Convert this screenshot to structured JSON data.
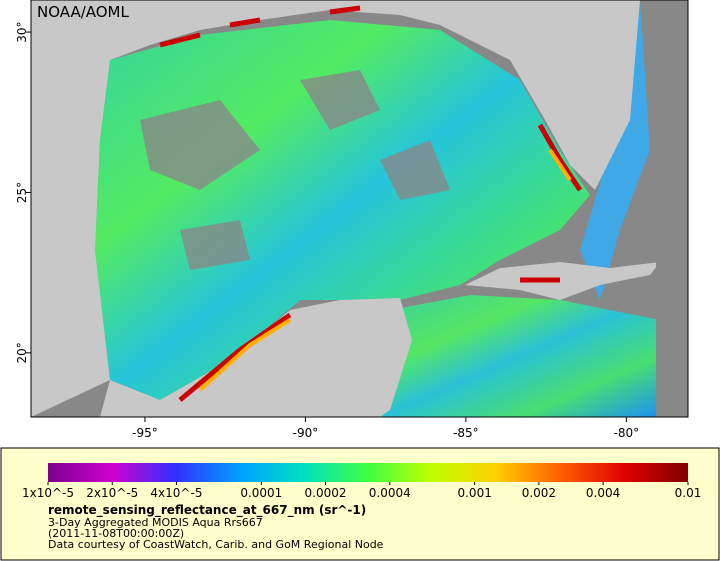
{
  "map": {
    "watermark": "NOAA/AOML",
    "lon_range": [
      -98.55,
      -78.08
    ],
    "lat_range": [
      18.0,
      31.0
    ],
    "lon_ticks": [
      {
        "value": -95,
        "label": "-95°"
      },
      {
        "value": -90,
        "label": "-90°"
      },
      {
        "value": -85,
        "label": "-85°"
      },
      {
        "value": -80,
        "label": "-80°"
      }
    ],
    "lat_ticks": [
      {
        "value": 30,
        "label": "30°"
      },
      {
        "value": 25,
        "label": "25°"
      },
      {
        "value": 20,
        "label": "20°"
      }
    ]
  },
  "legend": {
    "scale": "log",
    "range": [
      1e-05,
      0.01
    ],
    "colors": [
      "#7a0090",
      "#d000d0",
      "#3030ff",
      "#00a0ff",
      "#00e0c0",
      "#40ff40",
      "#c0ff00",
      "#ffd000",
      "#ff6000",
      "#e00000",
      "#800000"
    ],
    "ticks": [
      {
        "value": 1e-05,
        "label": "1x10^-5"
      },
      {
        "value": 2e-05,
        "label": "2x10^-5"
      },
      {
        "value": 4e-05,
        "label": "4x10^-5"
      },
      {
        "value": 0.0001,
        "label": "0.0001"
      },
      {
        "value": 0.0002,
        "label": "0.0002"
      },
      {
        "value": 0.0004,
        "label": "0.0004"
      },
      {
        "value": 0.001,
        "label": "0.001"
      },
      {
        "value": 0.002,
        "label": "0.002"
      },
      {
        "value": 0.004,
        "label": "0.004"
      },
      {
        "value": 0.01,
        "label": "0.01"
      }
    ],
    "title": "remote_sensing_reflectance_at_667_nm (sr^-1)",
    "lines": [
      "3-Day Aggregated MODIS Aqua Rrs667",
      "(2011-11-08T00:00:00Z)",
      "Data courtesy of CoastWatch, Carib. and GoM Regional Node"
    ]
  }
}
